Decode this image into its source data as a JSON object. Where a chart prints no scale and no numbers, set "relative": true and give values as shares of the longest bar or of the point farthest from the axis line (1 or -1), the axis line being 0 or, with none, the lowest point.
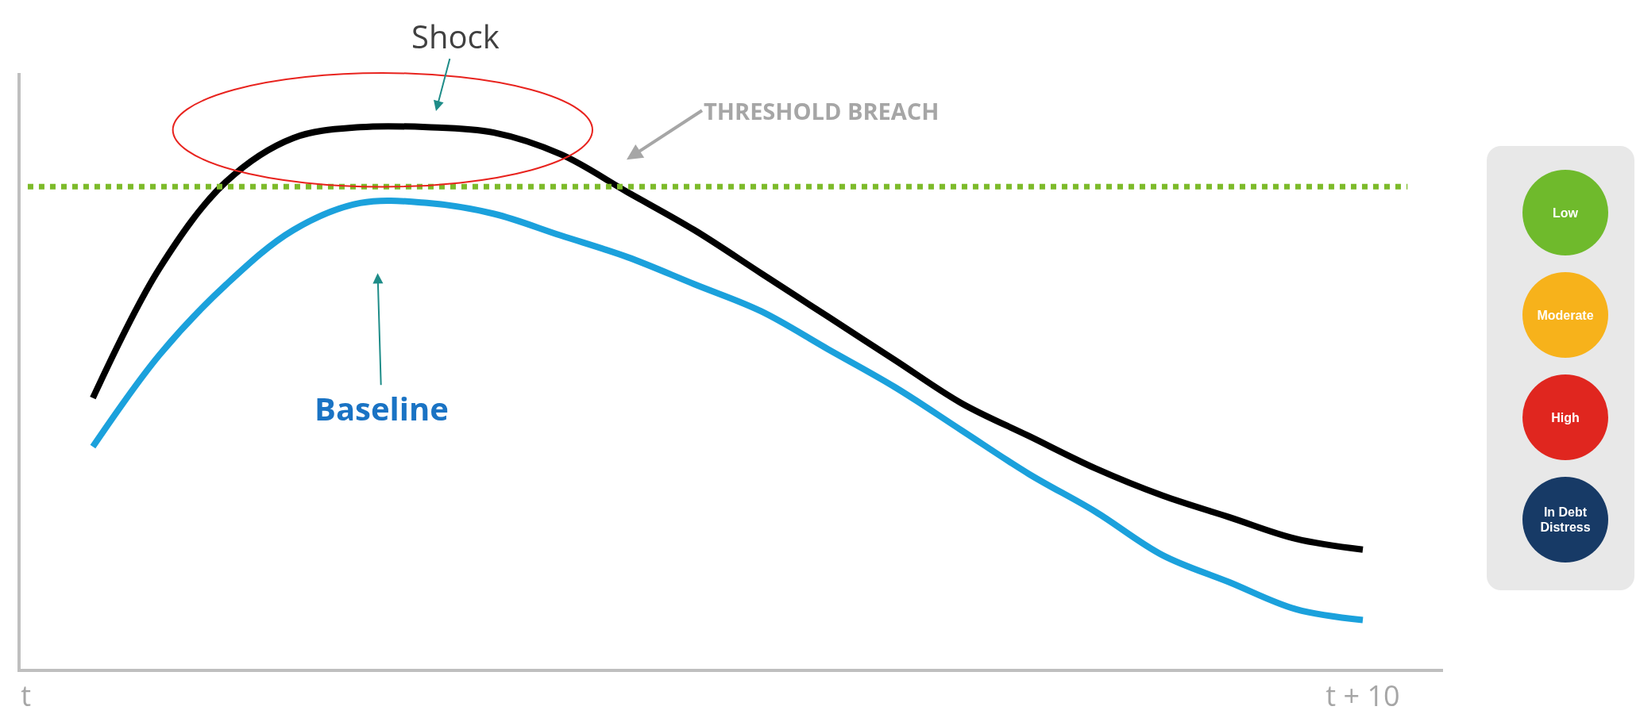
{
  "chart_data": {
    "type": "line",
    "relative": true,
    "tick_labels": "x",
    "marker": "none",
    "line_style": "solid",
    "categories": [
      "t",
      null,
      null,
      null,
      null,
      null,
      null,
      null,
      null,
      null,
      null,
      null,
      null,
      null,
      null,
      null,
      null,
      null,
      null,
      null,
      "t + 10",
      null
    ],
    "series": [
      {
        "color": "#000000",
        "values": [
          null,
          0.5,
          0.74,
          0.9,
          0.98,
          1,
          1,
          0.99,
          0.95,
          0.88,
          0.81,
          0.73,
          0.65,
          0.57,
          0.49,
          0.43,
          0.37,
          0.32,
          0.28,
          0.24,
          0.22,
          null
        ]
      },
      {
        "color": "#1ba1dc",
        "values": [
          null,
          0.41,
          0.58,
          0.71,
          0.81,
          0.86,
          0.86,
          0.84,
          0.8,
          0.76,
          0.71,
          0.66,
          0.59,
          0.52,
          0.44,
          0.36,
          0.29,
          0.21,
          0.16,
          0.11,
          0.09,
          null
        ]
      }
    ],
    "ref_lines": [
      {
        "axis": "y",
        "value": 0.89,
        "label": "THRESHOLD BREACH",
        "color": "#7dbb2a",
        "line_style": "dotted"
      }
    ],
    "annotations": [
      "Shock",
      "Baseline",
      "Low",
      "Moderate",
      "High",
      "In Debt Distress"
    ]
  }
}
